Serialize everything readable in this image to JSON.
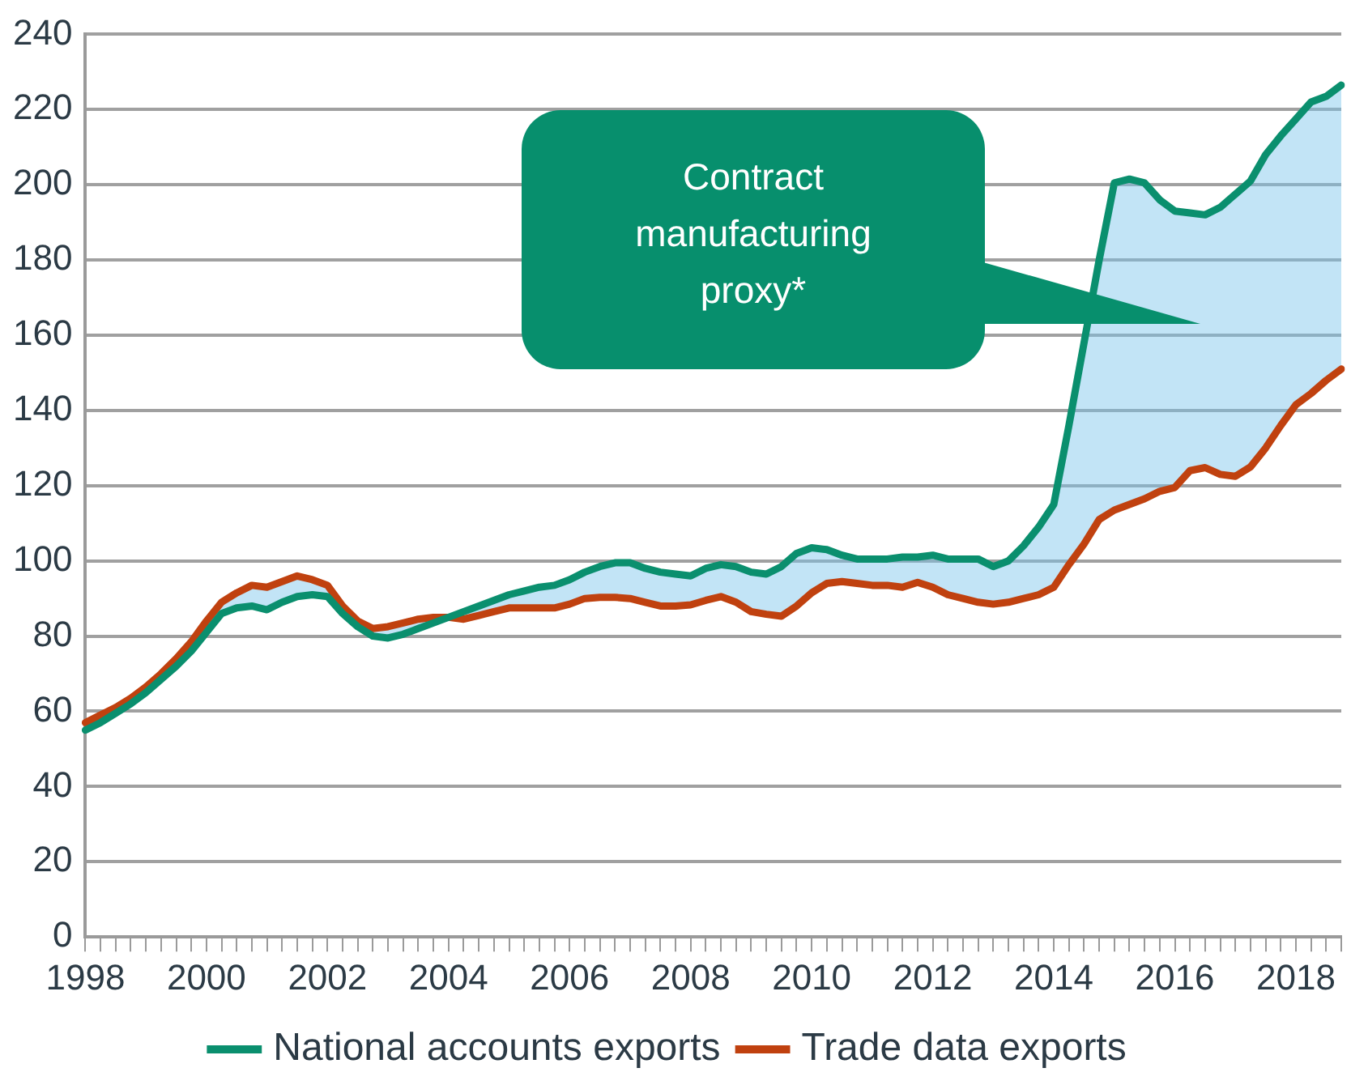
{
  "chart_data": {
    "type": "line",
    "categories": [
      "1998",
      null,
      null,
      null,
      null,
      null,
      null,
      null,
      "2000",
      null,
      null,
      null,
      null,
      null,
      null,
      null,
      "2002",
      null,
      null,
      null,
      null,
      null,
      null,
      null,
      "2004",
      null,
      null,
      null,
      null,
      null,
      null,
      null,
      "2006",
      null,
      null,
      null,
      null,
      null,
      null,
      null,
      "2008",
      null,
      null,
      null,
      null,
      null,
      null,
      null,
      "2010",
      null,
      null,
      null,
      null,
      null,
      null,
      null,
      "2012",
      null,
      null,
      null,
      null,
      null,
      null,
      null,
      "2014",
      null,
      null,
      null,
      null,
      null,
      null,
      null,
      "2016",
      null,
      null,
      null,
      null,
      null,
      null,
      null,
      "2018",
      null,
      null,
      null
    ],
    "series": [
      {
        "name": "National accounts exports",
        "color": "#0a8f6e",
        "values": [
          55,
          57,
          59.5,
          62,
          65,
          68.5,
          72,
          76,
          81,
          86,
          87.5,
          88,
          87,
          89,
          90.5,
          91,
          90.5,
          86,
          82.5,
          80,
          79.5,
          80.5,
          82,
          83.5,
          85,
          86.5,
          88,
          89.5,
          91,
          92,
          93,
          93.5,
          95,
          97,
          98.5,
          99.5,
          99.5,
          98,
          97,
          96.5,
          96,
          98,
          99,
          98.5,
          97,
          96.5,
          98.5,
          102,
          103.5,
          103,
          101.5,
          100.5,
          100.5,
          100.5,
          101,
          101,
          101.5,
          100.5,
          100.5,
          100.5,
          98.5,
          100,
          104,
          109,
          115,
          136,
          158,
          180,
          200.5,
          201.5,
          200.5,
          196,
          193,
          192.5,
          192,
          194,
          197.5,
          201,
          208,
          213,
          217.5,
          222,
          223.5,
          226.5
        ],
        "lower": [
          57,
          59,
          61,
          63.5,
          66.5,
          70,
          74,
          78.5,
          84,
          89,
          91.5,
          93.5,
          93,
          94.5,
          96,
          95,
          93.5,
          88,
          84,
          82,
          82.5,
          83.5,
          84.5,
          85,
          85,
          84.5,
          85.5,
          86.5,
          87.5,
          87.5,
          87.5,
          87.5,
          88.5,
          90,
          90.3,
          90.3,
          90,
          89,
          88,
          88,
          88.3,
          89.5,
          90.5,
          89,
          86.5,
          85.8,
          85.3,
          88,
          91.5,
          94,
          94.5,
          94,
          93.5,
          93.5,
          93,
          94.3,
          93,
          91,
          90,
          89,
          88.5,
          89,
          90,
          91,
          93,
          99,
          104.5,
          111,
          113.5,
          115,
          116.5,
          118.5,
          119.5,
          124,
          124.8,
          123,
          122.5,
          125,
          130,
          136,
          141.5,
          144.5,
          148,
          151
        ],
        "upper": [
          55,
          57,
          59.5,
          62,
          65,
          68.5,
          72,
          76,
          81,
          86,
          87.5,
          88,
          87,
          89,
          90.5,
          91,
          90.5,
          86,
          82.5,
          80,
          79.5,
          80.5,
          82,
          83.5,
          85,
          86.5,
          88,
          89.5,
          91,
          92,
          93,
          93.5,
          95,
          97,
          98.5,
          99.5,
          99.5,
          98,
          97,
          96.5,
          96,
          98,
          99,
          98.5,
          97,
          96.5,
          98.5,
          102,
          103.5,
          103,
          101.5,
          100.5,
          100.5,
          100.5,
          101,
          101,
          101.5,
          100.5,
          100.5,
          100.5,
          98.5,
          100,
          104,
          109,
          115,
          136,
          158,
          180,
          200.5,
          201.5,
          200.5,
          196,
          193,
          192.5,
          192,
          194,
          197.5,
          201,
          208,
          213,
          217.5,
          222,
          223.5,
          226.5
        ]
      },
      {
        "name": "Trade data exports",
        "color": "#c0410f",
        "values": [
          57,
          59,
          61,
          63.5,
          66.5,
          70,
          74,
          78.5,
          84,
          89,
          91.5,
          93.5,
          93,
          94.5,
          96,
          95,
          93.5,
          88,
          84,
          82,
          82.5,
          83.5,
          84.5,
          85,
          85,
          84.5,
          85.5,
          86.5,
          87.5,
          87.5,
          87.5,
          87.5,
          88.5,
          90,
          90.3,
          90.3,
          90,
          89,
          88,
          88,
          88.3,
          89.5,
          90.5,
          89,
          86.5,
          85.8,
          85.3,
          88,
          91.5,
          94,
          94.5,
          94,
          93.5,
          93.5,
          93,
          94.3,
          93,
          91,
          90,
          89,
          88.5,
          89,
          90,
          91,
          93,
          99,
          104.5,
          111,
          113.5,
          115,
          116.5,
          118.5,
          119.5,
          124,
          124.8,
          123,
          122.5,
          125,
          130,
          136,
          141.5,
          144.5,
          148,
          151
        ]
      }
    ],
    "annotations": [
      "Contract manufacturing proxy*"
    ],
    "ylim": [
      0,
      240
    ],
    "yticks": [
      0,
      20,
      40,
      60,
      80,
      100,
      120,
      140,
      160,
      180,
      200,
      220,
      240
    ],
    "grid": "y",
    "legend": "bottom",
    "marker": "none",
    "line_style": "solid"
  }
}
